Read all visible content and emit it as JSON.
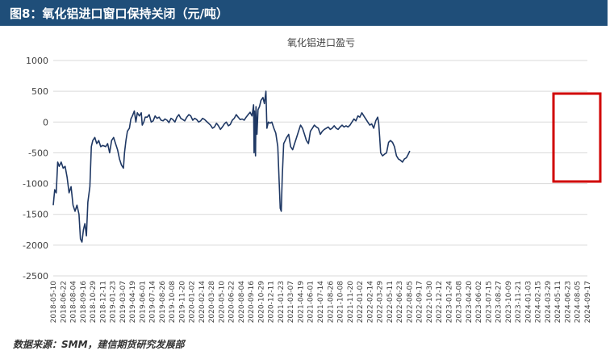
{
  "header": {
    "title": "图8：氧化铝进口窗口保持关闭（元/吨）"
  },
  "footer": {
    "source": "数据来源：SMM，建信期货研究发展部"
  },
  "colors": {
    "header_bg": "#1f4e79",
    "line": "#1f3864",
    "highlight_box": "#d00000",
    "grid": "#d9d9d9"
  },
  "chart_data": {
    "type": "line",
    "title": "氧化铝进口盈亏",
    "xlabel": "",
    "ylabel": "",
    "ylim": [
      -2500,
      1000
    ],
    "yticks": [
      1000,
      500,
      0,
      -500,
      -1000,
      -1500,
      -2000,
      -2500
    ],
    "grid": true,
    "legend": "none",
    "xtick_labels": [
      "2018-05-10",
      "2018-06-22",
      "2018-08-04",
      "2018-09-16",
      "2018-10-29",
      "2018-12-11",
      "2019-01-23",
      "2019-03-07",
      "2019-04-19",
      "2019-06-01",
      "2019-07-14",
      "2019-08-26",
      "2019-10-08",
      "2019-11-20",
      "2020-01-02",
      "2020-02-14",
      "2020-03-28",
      "2020-05-10",
      "2020-06-22",
      "2020-08-04",
      "2020-09-16",
      "2020-10-29",
      "2020-12-11",
      "2021-01-23",
      "2021-03-07",
      "2021-04-19",
      "2021-06-01",
      "2021-07-14",
      "2021-08-26",
      "2021-10-08",
      "2021-11-20",
      "2022-01-02",
      "2022-02-14",
      "2022-03-29",
      "2022-05-11",
      "2022-06-23",
      "2022-08-05",
      "2022-09-17",
      "2022-10-30",
      "2022-12-12",
      "2023-01-24",
      "2023-03-08",
      "2023-04-20",
      "2023-06-02",
      "2023-07-15",
      "2023-08-27",
      "2023-10-09",
      "2023-11-21",
      "2024-01-03",
      "2024-02-15",
      "2024-03-29",
      "2024-05-11",
      "2024-06-23",
      "2024-08-05",
      "2024-09-17"
    ],
    "series": [
      {
        "values": [
          [
            0,
            -1350
          ],
          [
            0.15,
            -1100
          ],
          [
            0.3,
            -1150
          ],
          [
            0.45,
            -650
          ],
          [
            0.6,
            -720
          ],
          [
            0.8,
            -650
          ],
          [
            1.0,
            -750
          ],
          [
            1.2,
            -720
          ],
          [
            1.4,
            -900
          ],
          [
            1.6,
            -1150
          ],
          [
            1.8,
            -1050
          ],
          [
            2.0,
            -1350
          ],
          [
            2.2,
            -1450
          ],
          [
            2.4,
            -1350
          ],
          [
            2.6,
            -1500
          ],
          [
            2.75,
            -1900
          ],
          [
            2.9,
            -1950
          ],
          [
            3.05,
            -1750
          ],
          [
            3.2,
            -1650
          ],
          [
            3.35,
            -1850
          ],
          [
            3.5,
            -1300
          ],
          [
            3.7,
            -1050
          ],
          [
            3.85,
            -400
          ],
          [
            4.0,
            -300
          ],
          [
            4.2,
            -250
          ],
          [
            4.4,
            -350
          ],
          [
            4.6,
            -300
          ],
          [
            4.8,
            -400
          ],
          [
            5.0,
            -380
          ],
          [
            5.3,
            -400
          ],
          [
            5.5,
            -350
          ],
          [
            5.7,
            -500
          ],
          [
            5.9,
            -300
          ],
          [
            6.1,
            -250
          ],
          [
            6.3,
            -350
          ],
          [
            6.5,
            -450
          ],
          [
            6.7,
            -600
          ],
          [
            6.9,
            -700
          ],
          [
            7.1,
            -750
          ],
          [
            7.2,
            -500
          ],
          [
            7.35,
            -300
          ],
          [
            7.5,
            -150
          ],
          [
            7.7,
            -100
          ],
          [
            7.85,
            50
          ],
          [
            8.0,
            100
          ],
          [
            8.2,
            180
          ],
          [
            8.35,
            0
          ],
          [
            8.5,
            150
          ],
          [
            8.7,
            100
          ],
          [
            8.9,
            150
          ],
          [
            9.0,
            -50
          ],
          [
            9.15,
            0
          ],
          [
            9.3,
            80
          ],
          [
            9.5,
            80
          ],
          [
            9.7,
            120
          ],
          [
            9.9,
            0
          ],
          [
            10.1,
            20
          ],
          [
            10.3,
            100
          ],
          [
            10.5,
            60
          ],
          [
            10.7,
            80
          ],
          [
            10.9,
            30
          ],
          [
            11.1,
            20
          ],
          [
            11.3,
            50
          ],
          [
            11.5,
            30
          ],
          [
            11.7,
            -10
          ],
          [
            11.9,
            60
          ],
          [
            12.1,
            40
          ],
          [
            12.3,
            0
          ],
          [
            12.5,
            80
          ],
          [
            12.7,
            120
          ],
          [
            12.9,
            60
          ],
          [
            13.1,
            40
          ],
          [
            13.3,
            20
          ],
          [
            13.5,
            80
          ],
          [
            13.7,
            120
          ],
          [
            13.9,
            100
          ],
          [
            14.1,
            30
          ],
          [
            14.3,
            60
          ],
          [
            14.5,
            40
          ],
          [
            14.7,
            0
          ],
          [
            14.9,
            20
          ],
          [
            15.1,
            60
          ],
          [
            15.3,
            40
          ],
          [
            15.5,
            10
          ],
          [
            15.7,
            -20
          ],
          [
            15.9,
            -50
          ],
          [
            16.1,
            -100
          ],
          [
            16.3,
            -80
          ],
          [
            16.5,
            -20
          ],
          [
            16.7,
            -60
          ],
          [
            16.9,
            -120
          ],
          [
            17.1,
            -80
          ],
          [
            17.3,
            -30
          ],
          [
            17.5,
            0
          ],
          [
            17.7,
            -60
          ],
          [
            17.9,
            -40
          ],
          [
            18.1,
            30
          ],
          [
            18.3,
            60
          ],
          [
            18.5,
            120
          ],
          [
            18.7,
            80
          ],
          [
            18.9,
            40
          ],
          [
            19.1,
            50
          ],
          [
            19.3,
            30
          ],
          [
            19.5,
            80
          ],
          [
            19.7,
            120
          ],
          [
            19.9,
            160
          ],
          [
            20.1,
            100
          ],
          [
            20.25,
            280
          ],
          [
            20.3,
            -500
          ],
          [
            20.35,
            180
          ],
          [
            20.45,
            -550
          ],
          [
            20.5,
            250
          ],
          [
            20.6,
            -200
          ],
          [
            20.7,
            200
          ],
          [
            20.85,
            250
          ],
          [
            21.0,
            350
          ],
          [
            21.2,
            400
          ],
          [
            21.35,
            300
          ],
          [
            21.5,
            500
          ],
          [
            21.6,
            -100
          ],
          [
            21.75,
            0
          ],
          [
            21.9,
            -20
          ],
          [
            22.1,
            0
          ],
          [
            22.3,
            -100
          ],
          [
            22.5,
            -180
          ],
          [
            22.7,
            -400
          ],
          [
            22.85,
            -1000
          ],
          [
            22.95,
            -1400
          ],
          [
            23.05,
            -1450
          ],
          [
            23.15,
            -900
          ],
          [
            23.3,
            -350
          ],
          [
            23.45,
            -300
          ],
          [
            23.6,
            -250
          ],
          [
            23.8,
            -200
          ],
          [
            24.0,
            -400
          ],
          [
            24.2,
            -450
          ],
          [
            24.4,
            -350
          ],
          [
            24.6,
            -250
          ],
          [
            24.8,
            -150
          ],
          [
            25.0,
            -50
          ],
          [
            25.2,
            -100
          ],
          [
            25.4,
            -200
          ],
          [
            25.6,
            -300
          ],
          [
            25.8,
            -350
          ],
          [
            26.0,
            -150
          ],
          [
            26.2,
            -100
          ],
          [
            26.4,
            -50
          ],
          [
            26.6,
            -80
          ],
          [
            26.8,
            -100
          ],
          [
            27.0,
            -200
          ],
          [
            27.2,
            -150
          ],
          [
            27.4,
            -120
          ],
          [
            27.6,
            -100
          ],
          [
            27.8,
            -80
          ],
          [
            28.0,
            -120
          ],
          [
            28.2,
            -100
          ],
          [
            28.4,
            -60
          ],
          [
            28.6,
            -100
          ],
          [
            28.8,
            -120
          ],
          [
            29.0,
            -80
          ],
          [
            29.2,
            -50
          ],
          [
            29.4,
            -80
          ],
          [
            29.6,
            -60
          ],
          [
            29.8,
            -80
          ],
          [
            30.0,
            -50
          ],
          [
            30.2,
            0
          ],
          [
            30.4,
            50
          ],
          [
            30.6,
            20
          ],
          [
            30.8,
            100
          ],
          [
            31.0,
            80
          ],
          [
            31.2,
            150
          ],
          [
            31.4,
            100
          ],
          [
            31.6,
            50
          ],
          [
            31.8,
            0
          ],
          [
            32.0,
            -50
          ],
          [
            32.2,
            -30
          ],
          [
            32.4,
            -100
          ],
          [
            32.6,
            20
          ],
          [
            32.8,
            80
          ],
          [
            32.9,
            -10
          ],
          [
            33.0,
            -250
          ],
          [
            33.1,
            -500
          ],
          [
            33.3,
            -550
          ],
          [
            33.5,
            -520
          ],
          [
            33.7,
            -500
          ],
          [
            33.9,
            -330
          ],
          [
            34.1,
            -300
          ],
          [
            34.3,
            -330
          ],
          [
            34.5,
            -400
          ],
          [
            34.7,
            -550
          ],
          [
            34.9,
            -600
          ],
          [
            35.1,
            -620
          ],
          [
            35.3,
            -650
          ],
          [
            35.5,
            -600
          ],
          [
            35.7,
            -580
          ],
          [
            35.9,
            -520
          ],
          [
            36.05,
            -470
          ]
        ]
      }
    ]
  }
}
